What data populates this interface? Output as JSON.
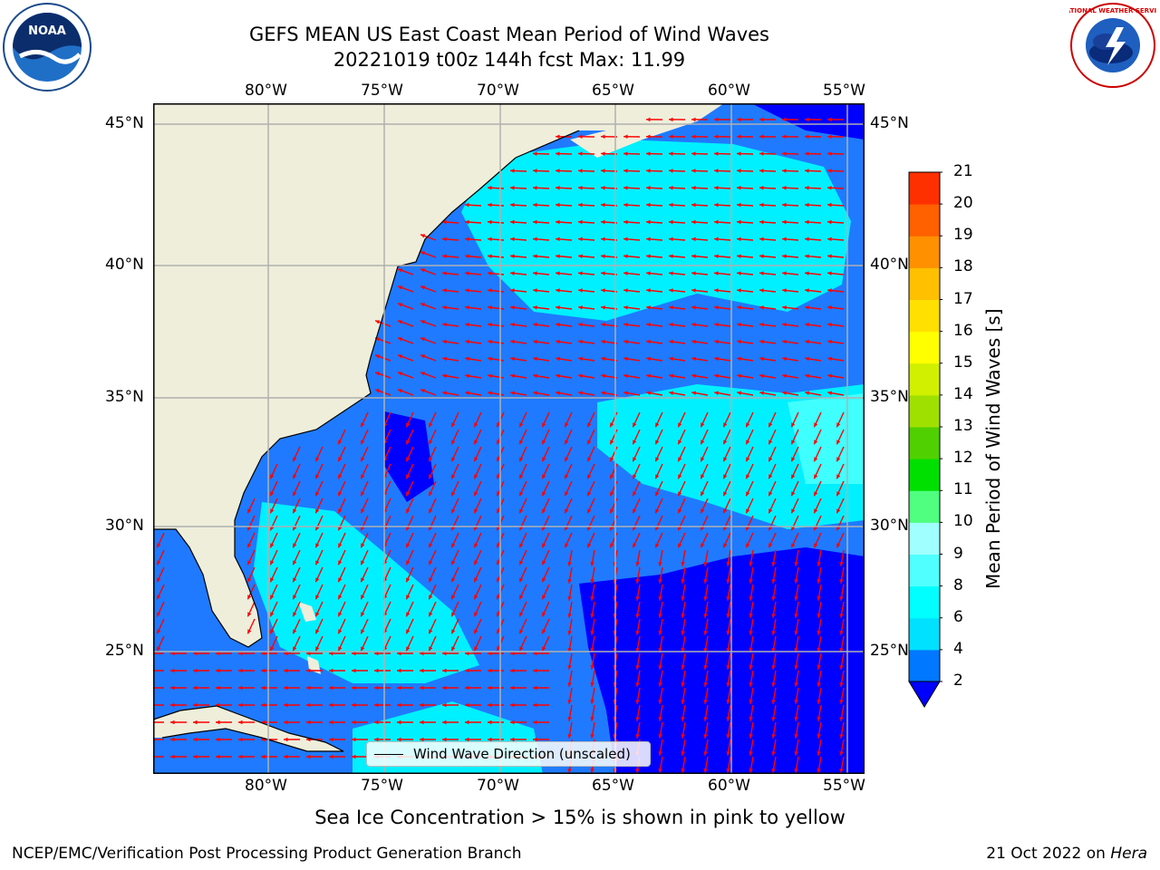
{
  "title_line1": "GEFS MEAN US East Coast Mean Period of Wind Waves",
  "title_line2": "20221019 t00z 144h fcst   Max: 11.99",
  "lon_ticks": [
    "80°W",
    "75°W",
    "70°W",
    "65°W",
    "60°W",
    "55°W"
  ],
  "lat_ticks": [
    "45°N",
    "40°N",
    "35°N",
    "30°N",
    "25°N"
  ],
  "legend_label": "Wind Wave Direction (unscaled)",
  "colorbar": {
    "label": "Mean Period of Wind Waves [s]",
    "ticks": [
      "2",
      "4",
      "6",
      "8",
      "9",
      "10",
      "11",
      "12",
      "13",
      "14",
      "15",
      "16",
      "17",
      "18",
      "19",
      "20",
      "21"
    ],
    "colors": [
      "#0078ff",
      "#00e0ff",
      "#00ffff",
      "#50ffff",
      "#a0ffff",
      "#50ff80",
      "#00e000",
      "#50d000",
      "#a0e000",
      "#d0f000",
      "#ffff00",
      "#ffe000",
      "#ffc000",
      "#ff9000",
      "#ff6000",
      "#ff3000",
      "#ff0000"
    ],
    "extend_color": "#0000ff"
  },
  "map_colors": {
    "land": "#efeedb",
    "period_lt2": "#0000ff",
    "period_2_4": "#1f7aff",
    "period_4_6": "#00f0ff",
    "period_6_8": "#30ffff",
    "arrows": "#ff0000"
  },
  "note": "Sea Ice Concentration > 15% is shown in pink to yellow",
  "footer_left": "NCEP/EMC/Verification Post Processing Product Generation Branch",
  "footer_right_date": "21 Oct 2022 on ",
  "footer_right_host": "Hera",
  "logos": {
    "left": "NOAA",
    "right": "NATIONAL WEATHER SERVICE"
  }
}
